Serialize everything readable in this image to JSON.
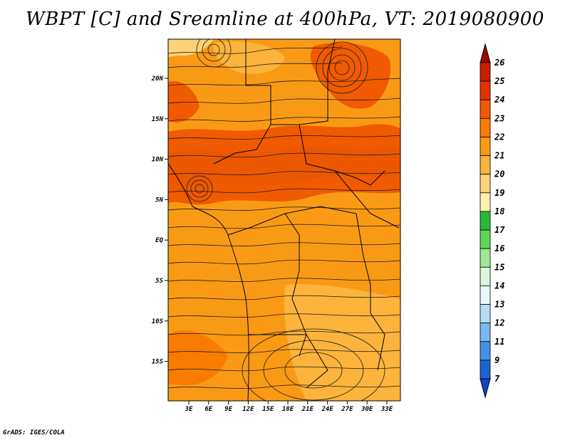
{
  "title": "WBPT [C] and Sreamline at 400hPa, VT: 2019080900",
  "footer": "GrADS: IGES/COLA",
  "map": {
    "variable": "Wet-bulb potential temperature (WBPT) with streamlines",
    "level": "400hPa",
    "valid_time": "2019080900",
    "lat_labels": [
      "20N",
      "15N",
      "10N",
      "5N",
      "EQ",
      "5S",
      "10S",
      "15S"
    ],
    "lon_labels": [
      "3E",
      "6E",
      "9E",
      "12E",
      "15E",
      "18E",
      "21E",
      "24E",
      "27E",
      "30E",
      "33E"
    ]
  },
  "colorbar": {
    "labels": [
      "26",
      "25",
      "24",
      "23",
      "22",
      "21",
      "20",
      "19",
      "18",
      "17",
      "16",
      "15",
      "14",
      "13",
      "12",
      "11",
      "9",
      "7"
    ],
    "colors": [
      "#a50000",
      "#c81e00",
      "#e63200",
      "#f05a00",
      "#f87c00",
      "#fa9a14",
      "#fcb43c",
      "#fcd278",
      "#fff0b0",
      "#2eb83a",
      "#5ed65a",
      "#a0e896",
      "#dcf6dc",
      "#e6f6fa",
      "#b4dcf6",
      "#7ab8ee",
      "#4690e6",
      "#1e64d2",
      "#0f46c8"
    ]
  }
}
